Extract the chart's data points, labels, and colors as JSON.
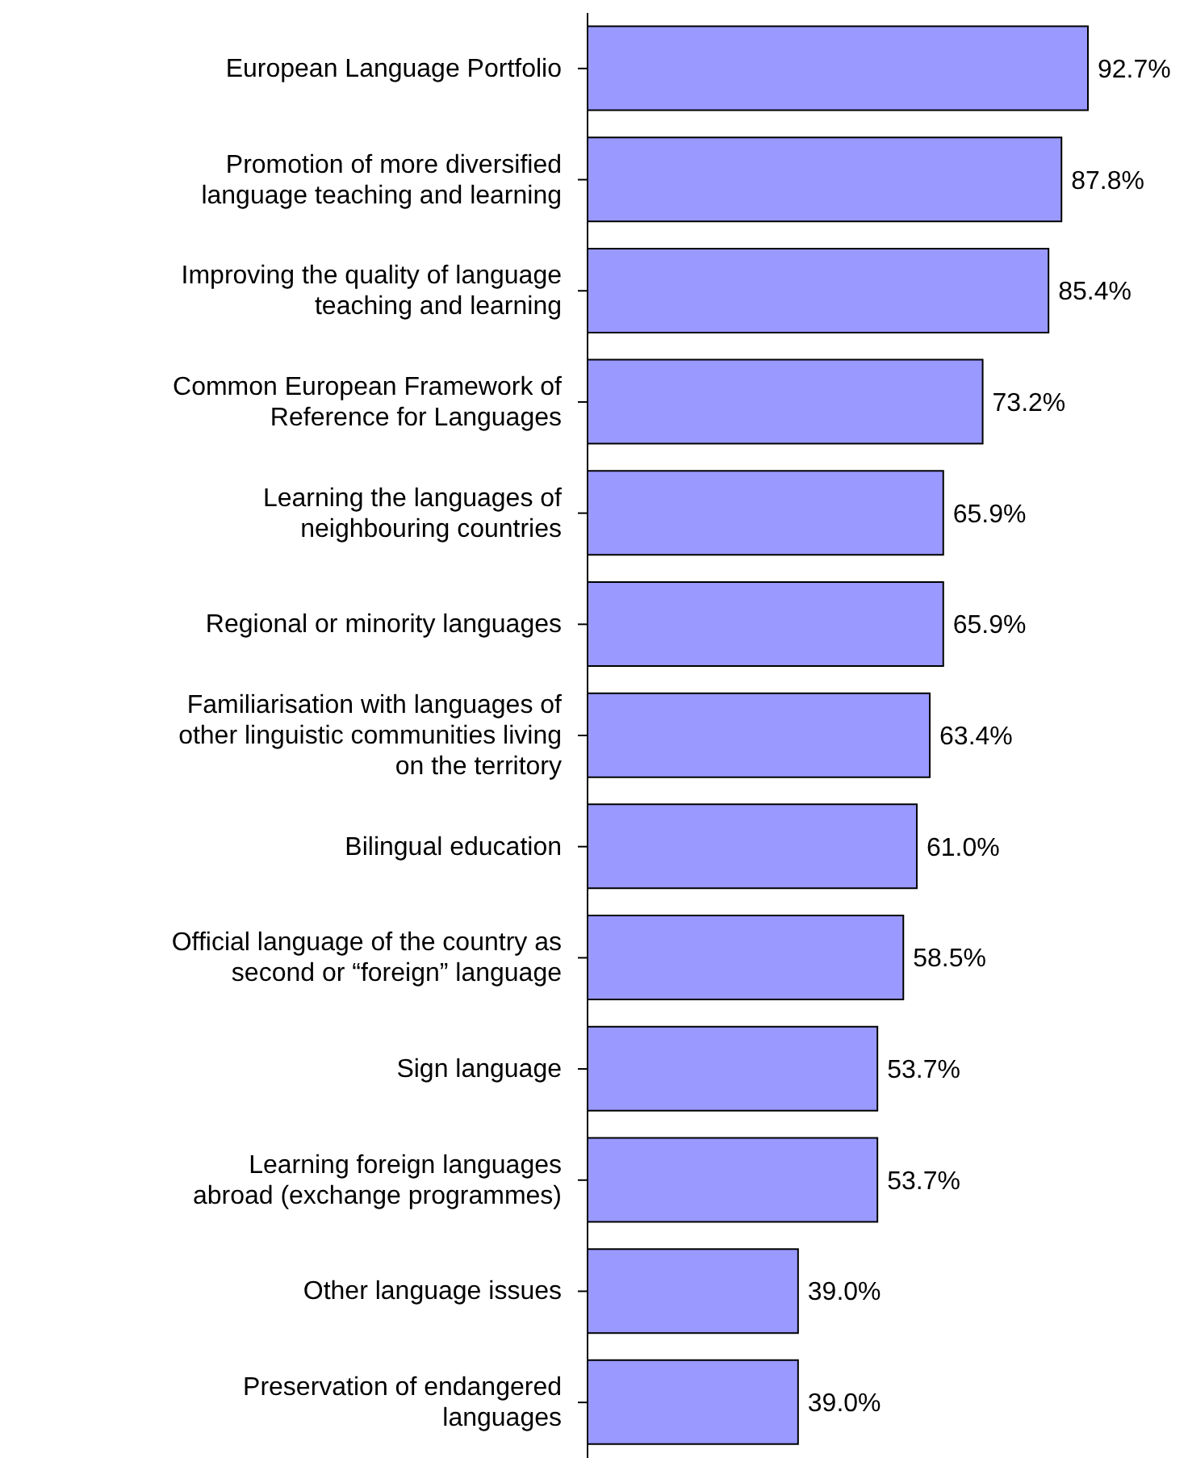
{
  "chart_data": {
    "type": "bar",
    "orientation": "horizontal",
    "categories": [
      "European Language Portfolio",
      "Promotion of more diversified\nlanguage teaching and learning",
      "Improving the quality of language\nteaching and learning",
      "Common European Framework of\nReference for Languages",
      "Learning the languages of\nneighbouring countries",
      "Regional or minority languages",
      "Familiarisation with languages of\nother linguistic communities living\non the territory",
      "Bilingual education",
      "Official language of the country as\nsecond or “foreign” language",
      "Sign language",
      "Learning foreign languages\nabroad (exchange programmes)",
      "Other language issues",
      "Preservation of endangered\nlanguages"
    ],
    "values": [
      92.7,
      87.8,
      85.4,
      73.2,
      65.9,
      65.9,
      63.4,
      61.0,
      58.5,
      53.7,
      53.7,
      39.0,
      39.0
    ],
    "value_labels": [
      "92.7%",
      "87.8%",
      "85.4%",
      "73.2%",
      "65.9%",
      "65.9%",
      "63.4%",
      "61.0%",
      "58.5%",
      "53.7%",
      "53.7%",
      "39.0%",
      "39.0%"
    ],
    "color": "#9999ff"
  }
}
